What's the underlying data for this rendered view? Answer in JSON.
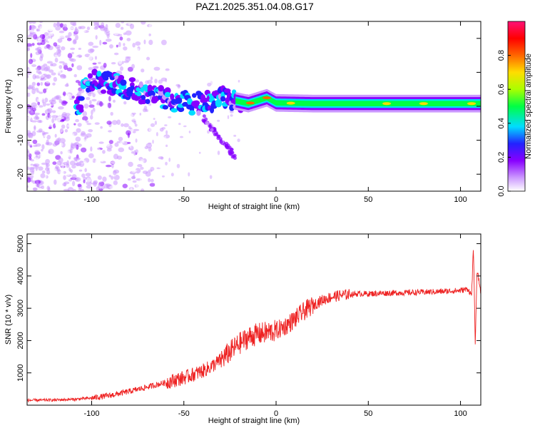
{
  "title": "PAZ1.2025.351.04.08.G17",
  "chart_data": [
    {
      "type": "heatmap",
      "name": "spectrogram",
      "xlabel": "Height of straight line (km)",
      "ylabel": "Frequency (Hz)",
      "xlim": [
        -135,
        111
      ],
      "ylim": [
        -25,
        25
      ],
      "xticks": [
        -100,
        -50,
        0,
        50,
        100
      ],
      "yticks": [
        -20,
        -10,
        0,
        10,
        20
      ],
      "colorbar": {
        "label": "Normalized spectral amplitude",
        "range": [
          0.0,
          1.0
        ],
        "ticks": [
          0.0,
          0.2,
          0.4,
          0.6,
          0.8
        ],
        "colors": [
          "#ffffff",
          "#cc99ff",
          "#8800ff",
          "#2222ff",
          "#00ddff",
          "#00ff44",
          "#aaff00",
          "#ffdd00",
          "#ff6600",
          "#ff0000",
          "#ff1177"
        ]
      },
      "ridge": {
        "description": "dominant spectral ridge",
        "points": [
          {
            "x": -105,
            "y": 8
          },
          {
            "x": -90,
            "y": 7
          },
          {
            "x": -75,
            "y": 4.5
          },
          {
            "x": -60,
            "y": 2
          },
          {
            "x": -45,
            "y": 0.5
          },
          {
            "x": -30,
            "y": 2.5
          },
          {
            "x": -15,
            "y": 0.8
          },
          {
            "x": -5,
            "y": 2.5
          },
          {
            "x": 0,
            "y": 1
          },
          {
            "x": 20,
            "y": 0.8
          },
          {
            "x": 50,
            "y": 0.8
          },
          {
            "x": 80,
            "y": 0.8
          },
          {
            "x": 111,
            "y": 0.8
          }
        ]
      }
    },
    {
      "type": "line",
      "name": "snr",
      "xlabel": "Height of straight line (km)",
      "ylabel": "SNR (10 * v/v)",
      "xlim": [
        -135,
        111
      ],
      "ylim": [
        0,
        5300
      ],
      "xticks": [
        -100,
        -50,
        0,
        50,
        100
      ],
      "yticks": [
        1000,
        2000,
        3000,
        4000,
        5000
      ],
      "color": "#ee2222",
      "series": [
        {
          "name": "SNR",
          "x": [
            -135,
            -120,
            -110,
            -100,
            -90,
            -80,
            -70,
            -60,
            -50,
            -45,
            -40,
            -35,
            -30,
            -25,
            -22,
            -20,
            -15,
            -10,
            -5,
            0,
            5,
            10,
            15,
            20,
            25,
            30,
            35,
            40,
            45,
            50,
            60,
            70,
            80,
            90,
            100,
            104,
            106,
            107,
            108,
            109,
            111
          ],
          "y": [
            150,
            160,
            180,
            220,
            300,
            420,
            560,
            700,
            850,
            950,
            1050,
            1200,
            1400,
            1650,
            1800,
            1900,
            2100,
            2200,
            2250,
            2300,
            2450,
            2650,
            2900,
            3100,
            3250,
            3350,
            3400,
            3430,
            3450,
            3450,
            3470,
            3480,
            3500,
            3520,
            3550,
            3600,
            3400,
            4900,
            1900,
            4200,
            3500
          ]
        }
      ]
    }
  ]
}
